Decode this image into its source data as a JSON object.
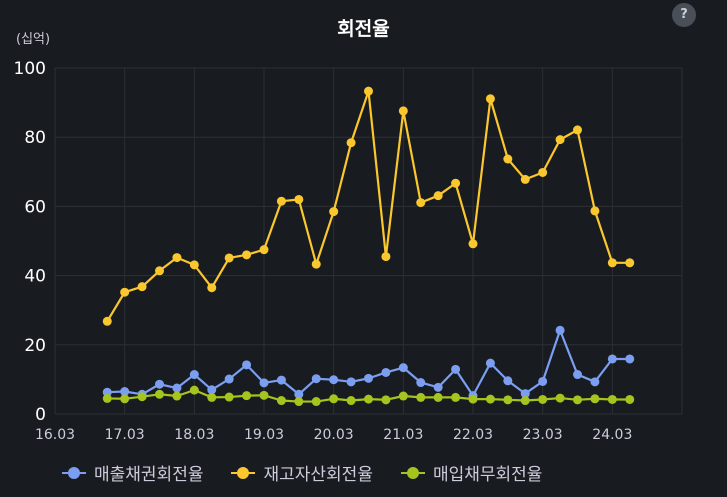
{
  "header": {
    "title": "회전율",
    "help_label": "?",
    "unit_label": "(십억)"
  },
  "chart_data": {
    "type": "line",
    "title": "회전율",
    "ylabel": "(십억)",
    "ylim": [
      0,
      100
    ],
    "yticks": [
      "0",
      "20",
      "40",
      "60",
      "80",
      "100"
    ],
    "xticks": [
      "16.03",
      "17.03",
      "18.03",
      "19.03",
      "20.03",
      "21.03",
      "22.03",
      "23.03",
      "24.03"
    ],
    "grid": true,
    "legend_position": "bottom-left",
    "x": [
      "16.12",
      "17.03",
      "17.06",
      "17.09",
      "17.12",
      "18.03",
      "18.06",
      "18.09",
      "18.12",
      "19.03",
      "19.06",
      "19.09",
      "19.12",
      "20.03",
      "20.06",
      "20.09",
      "20.12",
      "21.03",
      "21.06",
      "21.09",
      "21.12",
      "22.03",
      "22.06",
      "22.09",
      "22.12",
      "23.03",
      "23.06",
      "23.09",
      "23.12",
      "24.03",
      "24.06"
    ],
    "series": [
      {
        "name": "매출채권회전율",
        "color": "#7b9ef0",
        "values": [
          6.3,
          6.5,
          5.7,
          8.6,
          7.5,
          11.4,
          7.0,
          10.1,
          14.2,
          9.0,
          9.8,
          5.7,
          10.2,
          9.9,
          9.3,
          10.3,
          12.0,
          13.4,
          9.1,
          7.7,
          12.9,
          5.3,
          14.7,
          9.6,
          5.9,
          9.4,
          24.2,
          11.4,
          9.3,
          15.9,
          15.9
        ]
      },
      {
        "name": "재고자산회전율",
        "color": "#fac72e",
        "values": [
          26.8,
          35.2,
          36.8,
          41.4,
          45.2,
          43.1,
          36.5,
          45.1,
          46.0,
          47.5,
          61.5,
          62.0,
          43.3,
          58.5,
          78.4,
          93.3,
          45.5,
          87.6,
          61.1,
          63.1,
          66.7,
          49.2,
          91.1,
          73.7,
          67.8,
          69.8,
          79.3,
          82.1,
          58.7,
          43.7,
          43.7
        ]
      },
      {
        "name": "매입채무회전율",
        "color": "#a6c41e",
        "values": [
          4.5,
          4.4,
          5.0,
          5.7,
          5.2,
          6.9,
          4.8,
          4.9,
          5.3,
          5.4,
          3.9,
          3.6,
          3.6,
          4.4,
          3.9,
          4.3,
          4.1,
          5.2,
          4.8,
          4.8,
          4.8,
          4.3,
          4.3,
          4.1,
          3.9,
          4.2,
          4.6,
          4.1,
          4.4,
          4.2,
          4.2
        ]
      }
    ]
  }
}
